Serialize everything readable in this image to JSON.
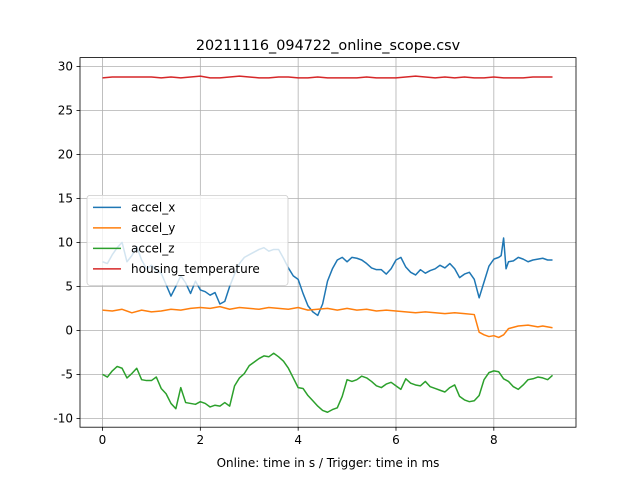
{
  "chart_data": {
    "type": "line",
    "title": "20211116_094722_online_scope.csv",
    "xlabel": "Online: time in s / Trigger: time in ms",
    "ylabel": "",
    "xlim": [
      -0.46,
      9.68
    ],
    "ylim": [
      -11.0,
      31.0
    ],
    "xticks": [
      0,
      2,
      4,
      6,
      8
    ],
    "yticks": [
      -10,
      -5,
      0,
      5,
      10,
      15,
      20,
      25,
      30
    ],
    "grid": true,
    "legend_position": "center-left",
    "series": [
      {
        "name": "accel_x",
        "color": "#1f77b4",
        "x": [
          0,
          0.1,
          0.2,
          0.3,
          0.4,
          0.5,
          0.6,
          0.7,
          0.8,
          0.9,
          1.0,
          1.1,
          1.2,
          1.3,
          1.4,
          1.5,
          1.6,
          1.7,
          1.8,
          1.9,
          2.0,
          2.1,
          2.2,
          2.3,
          2.4,
          2.5,
          2.6,
          2.7,
          2.8,
          2.9,
          3.0,
          3.1,
          3.2,
          3.3,
          3.4,
          3.5,
          3.6,
          3.7,
          3.8,
          3.9,
          4.0,
          4.1,
          4.2,
          4.3,
          4.4,
          4.5,
          4.6,
          4.7,
          4.8,
          4.9,
          5.0,
          5.1,
          5.2,
          5.3,
          5.4,
          5.5,
          5.6,
          5.7,
          5.8,
          5.9,
          6.0,
          6.1,
          6.2,
          6.3,
          6.4,
          6.5,
          6.6,
          6.7,
          6.8,
          6.9,
          7.0,
          7.1,
          7.2,
          7.3,
          7.4,
          7.5,
          7.6,
          7.7,
          7.8,
          7.9,
          8.0,
          8.1,
          8.15,
          8.2,
          8.25,
          8.3,
          8.4,
          8.5,
          8.6,
          8.7,
          8.8,
          8.9,
          9.0,
          9.1,
          9.2
        ],
        "y": [
          7.8,
          7.6,
          8.6,
          9.4,
          10.0,
          7.8,
          8.5,
          9.5,
          8.0,
          7.0,
          7.4,
          6.8,
          6.5,
          5.2,
          3.9,
          5.0,
          6.2,
          5.4,
          4.2,
          5.6,
          4.6,
          4.4,
          4.0,
          4.3,
          3.0,
          3.3,
          5.0,
          6.4,
          7.6,
          8.3,
          8.6,
          8.9,
          9.2,
          9.4,
          9.0,
          9.2,
          9.2,
          8.2,
          7.1,
          6.2,
          5.8,
          4.2,
          2.8,
          2.1,
          1.7,
          3.0,
          5.6,
          7.0,
          8.0,
          8.3,
          7.8,
          8.3,
          8.2,
          8.0,
          7.6,
          7.1,
          6.9,
          6.9,
          6.4,
          7.0,
          8.0,
          8.3,
          7.2,
          6.6,
          6.3,
          6.9,
          6.5,
          6.8,
          7.0,
          7.4,
          7.1,
          7.6,
          7.0,
          6.0,
          6.4,
          6.6,
          5.8,
          3.7,
          5.5,
          7.3,
          8.1,
          8.3,
          8.5,
          10.5,
          7.0,
          7.8,
          7.9,
          8.3,
          8.1,
          7.8,
          8.0,
          8.1,
          8.2,
          8.0,
          8.0
        ]
      },
      {
        "name": "accel_y",
        "color": "#ff7f0e",
        "x": [
          0,
          0.2,
          0.4,
          0.6,
          0.8,
          1.0,
          1.2,
          1.4,
          1.6,
          1.8,
          2.0,
          2.2,
          2.4,
          2.6,
          2.8,
          3.0,
          3.2,
          3.4,
          3.6,
          3.8,
          4.0,
          4.2,
          4.4,
          4.6,
          4.8,
          5.0,
          5.2,
          5.4,
          5.6,
          5.8,
          6.0,
          6.2,
          6.4,
          6.6,
          6.8,
          7.0,
          7.2,
          7.4,
          7.6,
          7.7,
          7.8,
          7.9,
          8.0,
          8.1,
          8.2,
          8.3,
          8.5,
          8.7,
          8.9,
          9.0,
          9.2
        ],
        "y": [
          2.3,
          2.2,
          2.4,
          2.0,
          2.3,
          2.1,
          2.2,
          2.4,
          2.3,
          2.5,
          2.6,
          2.5,
          2.7,
          2.4,
          2.6,
          2.5,
          2.4,
          2.6,
          2.5,
          2.4,
          2.6,
          2.3,
          2.4,
          2.5,
          2.3,
          2.5,
          2.3,
          2.4,
          2.2,
          2.3,
          2.2,
          2.1,
          2.0,
          2.1,
          2.0,
          1.9,
          2.0,
          1.9,
          1.8,
          -0.2,
          -0.5,
          -0.7,
          -0.6,
          -0.8,
          -0.5,
          0.2,
          0.5,
          0.6,
          0.4,
          0.5,
          0.3
        ]
      },
      {
        "name": "accel_z",
        "color": "#2ca02c",
        "x": [
          0,
          0.1,
          0.2,
          0.3,
          0.4,
          0.5,
          0.6,
          0.7,
          0.8,
          0.9,
          1.0,
          1.1,
          1.2,
          1.3,
          1.4,
          1.5,
          1.6,
          1.7,
          1.8,
          1.9,
          2.0,
          2.1,
          2.2,
          2.3,
          2.4,
          2.5,
          2.6,
          2.7,
          2.8,
          2.9,
          3.0,
          3.1,
          3.2,
          3.3,
          3.4,
          3.5,
          3.6,
          3.7,
          3.8,
          3.9,
          4.0,
          4.1,
          4.2,
          4.3,
          4.4,
          4.5,
          4.6,
          4.7,
          4.8,
          4.9,
          5.0,
          5.1,
          5.2,
          5.3,
          5.4,
          5.5,
          5.6,
          5.7,
          5.8,
          5.9,
          6.0,
          6.1,
          6.2,
          6.3,
          6.4,
          6.5,
          6.6,
          6.7,
          6.8,
          6.9,
          7.0,
          7.1,
          7.2,
          7.3,
          7.4,
          7.5,
          7.6,
          7.7,
          7.8,
          7.9,
          8.0,
          8.1,
          8.2,
          8.3,
          8.4,
          8.5,
          8.6,
          8.7,
          8.8,
          8.9,
          9.0,
          9.1,
          9.2
        ],
        "y": [
          -5.0,
          -5.3,
          -4.6,
          -4.1,
          -4.3,
          -5.4,
          -4.9,
          -4.3,
          -5.6,
          -5.7,
          -5.7,
          -5.3,
          -6.6,
          -7.2,
          -8.3,
          -8.9,
          -6.5,
          -8.2,
          -8.3,
          -8.4,
          -8.1,
          -8.3,
          -8.7,
          -8.5,
          -8.6,
          -8.2,
          -8.6,
          -6.3,
          -5.4,
          -4.9,
          -4.0,
          -3.6,
          -3.2,
          -2.9,
          -3.0,
          -2.6,
          -3.0,
          -3.5,
          -4.3,
          -5.4,
          -6.5,
          -6.6,
          -7.4,
          -8.0,
          -8.6,
          -9.1,
          -9.3,
          -9.0,
          -8.8,
          -7.5,
          -5.6,
          -5.8,
          -5.6,
          -5.2,
          -5.4,
          -5.8,
          -6.3,
          -6.5,
          -6.1,
          -5.9,
          -6.3,
          -6.7,
          -5.5,
          -6.0,
          -6.2,
          -6.3,
          -5.8,
          -6.4,
          -6.6,
          -6.8,
          -7.0,
          -6.5,
          -6.2,
          -7.5,
          -7.9,
          -8.1,
          -8.0,
          -7.4,
          -5.6,
          -4.8,
          -4.6,
          -4.7,
          -5.5,
          -5.8,
          -6.4,
          -6.7,
          -6.2,
          -5.6,
          -5.5,
          -5.3,
          -5.4,
          -5.6,
          -5.1
        ]
      },
      {
        "name": "housing_temperature",
        "color": "#d62728",
        "x": [
          0,
          0.2,
          0.4,
          0.6,
          0.8,
          1.0,
          1.2,
          1.4,
          1.6,
          1.8,
          2.0,
          2.2,
          2.4,
          2.6,
          2.8,
          3.0,
          3.2,
          3.4,
          3.6,
          3.8,
          4.0,
          4.2,
          4.4,
          4.6,
          4.8,
          5.0,
          5.2,
          5.4,
          5.6,
          5.8,
          6.0,
          6.2,
          6.4,
          6.6,
          6.8,
          7.0,
          7.2,
          7.4,
          7.6,
          7.8,
          8.0,
          8.2,
          8.4,
          8.6,
          8.8,
          9.0,
          9.2
        ],
        "y": [
          28.7,
          28.8,
          28.8,
          28.8,
          28.8,
          28.8,
          28.7,
          28.8,
          28.7,
          28.8,
          28.9,
          28.7,
          28.7,
          28.8,
          28.9,
          28.8,
          28.7,
          28.7,
          28.8,
          28.8,
          28.7,
          28.7,
          28.8,
          28.7,
          28.7,
          28.7,
          28.7,
          28.8,
          28.7,
          28.7,
          28.7,
          28.8,
          28.9,
          28.8,
          28.7,
          28.8,
          28.7,
          28.8,
          28.7,
          28.7,
          28.8,
          28.7,
          28.7,
          28.7,
          28.8,
          28.8,
          28.8
        ]
      }
    ]
  }
}
